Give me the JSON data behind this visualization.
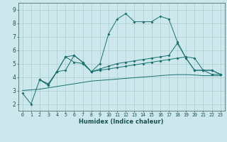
{
  "background_color": "#cce8ec",
  "grid_color": "#aacccc",
  "line_color": "#1a7070",
  "x_label": "Humidex (Indice chaleur)",
  "ylim": [
    1.5,
    9.5
  ],
  "xlim": [
    -0.5,
    23.5
  ],
  "yticks": [
    2,
    3,
    4,
    5,
    6,
    7,
    8,
    9
  ],
  "line1_x": [
    0,
    1,
    2,
    3,
    4,
    5,
    6,
    7,
    8,
    9,
    10,
    11,
    12,
    13,
    14,
    15,
    16,
    17,
    18,
    19,
    20,
    21,
    22,
    23
  ],
  "line1_y": [
    2.8,
    2.0,
    3.8,
    3.4,
    4.4,
    5.5,
    5.1,
    5.0,
    4.4,
    5.0,
    7.2,
    8.3,
    8.7,
    8.1,
    8.1,
    8.1,
    8.5,
    8.3,
    6.6,
    5.4,
    4.5,
    4.5,
    4.2,
    4.2
  ],
  "line2_x": [
    2,
    3,
    4,
    5,
    6,
    7,
    8,
    9,
    10,
    11,
    12,
    13,
    14,
    15,
    16,
    17,
    18,
    19,
    20,
    21,
    22,
    23
  ],
  "line2_y": [
    3.8,
    3.4,
    4.4,
    5.5,
    5.6,
    5.1,
    4.4,
    4.6,
    4.8,
    5.0,
    5.1,
    5.2,
    5.3,
    5.4,
    5.5,
    5.6,
    6.5,
    5.4,
    4.5,
    4.5,
    4.5,
    4.2
  ],
  "line3_x": [
    2,
    3,
    4,
    5,
    6,
    7,
    8,
    9,
    10,
    11,
    12,
    13,
    14,
    15,
    16,
    17,
    18,
    19,
    20,
    21,
    22,
    23
  ],
  "line3_y": [
    3.8,
    3.5,
    4.4,
    4.5,
    5.6,
    5.1,
    4.4,
    4.5,
    4.6,
    4.7,
    4.8,
    4.9,
    5.0,
    5.1,
    5.2,
    5.3,
    5.4,
    5.5,
    5.4,
    4.5,
    4.5,
    4.2
  ],
  "line4_x": [
    0,
    1,
    2,
    3,
    4,
    5,
    6,
    7,
    8,
    9,
    10,
    11,
    12,
    13,
    14,
    15,
    16,
    17,
    18,
    19,
    20,
    21,
    22,
    23
  ],
  "line4_y": [
    3.0,
    3.05,
    3.1,
    3.2,
    3.3,
    3.4,
    3.5,
    3.6,
    3.7,
    3.75,
    3.8,
    3.85,
    3.9,
    3.95,
    4.0,
    4.05,
    4.1,
    4.15,
    4.18,
    4.18,
    4.15,
    4.1,
    4.1,
    4.1
  ]
}
